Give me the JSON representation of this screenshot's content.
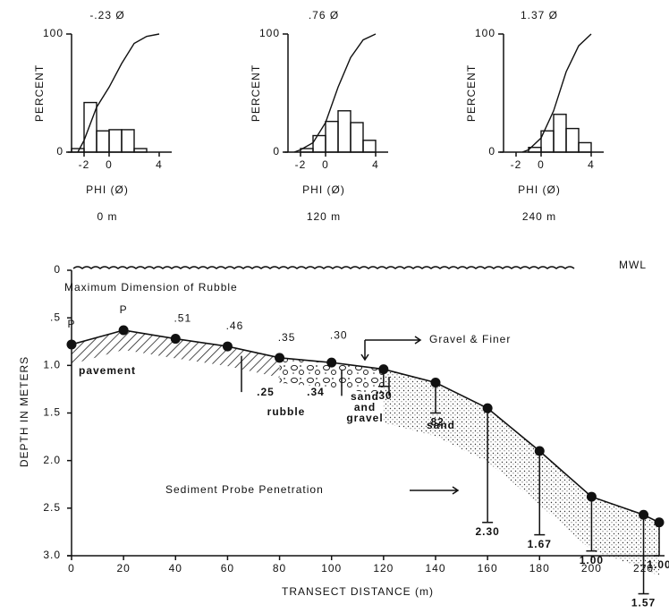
{
  "chart_data": [
    {
      "type": "histogram",
      "title": "-.23 Ø",
      "ylabel": "PERCENT",
      "xlabel": "PHI (Ø)",
      "caption": "0 m",
      "bins": [
        -3,
        -2,
        -1,
        0,
        1,
        2,
        3
      ],
      "counts": [
        3,
        42,
        18,
        19,
        19,
        3
      ],
      "cumulative": {
        "x": [
          -2.5,
          -2,
          -1,
          0,
          1,
          2,
          3,
          4
        ],
        "y": [
          0,
          10,
          38,
          55,
          75,
          92,
          98,
          100
        ]
      },
      "xlim": [
        -3,
        5
      ],
      "ylim": [
        0,
        100
      ],
      "xticks": [
        -2,
        0,
        4
      ],
      "yticks": [
        0,
        100
      ],
      "color": "#111111"
    },
    {
      "type": "histogram",
      "title": ".76 Ø",
      "ylabel": "PERCENT",
      "xlabel": "PHI (Ø)",
      "caption": "120 m",
      "bins": [
        -2,
        -1,
        0,
        1,
        2,
        3,
        4
      ],
      "counts": [
        3,
        14,
        26,
        35,
        25,
        10
      ],
      "cumulative": {
        "x": [
          -2.5,
          -2,
          -1,
          0,
          1,
          2,
          3,
          4
        ],
        "y": [
          0,
          2,
          8,
          25,
          55,
          80,
          95,
          100
        ]
      },
      "xlim": [
        -3,
        5
      ],
      "ylim": [
        0,
        100
      ],
      "xticks": [
        -2,
        0,
        4
      ],
      "yticks": [
        0,
        100
      ],
      "color": "#111111"
    },
    {
      "type": "histogram",
      "title": "1.37 Ø",
      "ylabel": "PERCENT",
      "xlabel": "PHI (Ø)",
      "caption": "240 m",
      "bins": [
        -1,
        0,
        1,
        2,
        3,
        4
      ],
      "counts": [
        4,
        18,
        32,
        20,
        8
      ],
      "cumulative": {
        "x": [
          -1.5,
          -1,
          0,
          1,
          2,
          3,
          4
        ],
        "y": [
          0,
          2,
          12,
          35,
          68,
          90,
          100
        ]
      },
      "xlim": [
        -3,
        5
      ],
      "ylim": [
        0,
        100
      ],
      "xticks": [
        -2,
        0,
        4
      ],
      "yticks": [
        0,
        100
      ],
      "color": "#111111"
    },
    {
      "type": "profile",
      "xlabel": "TRANSECT DISTANCE (m)",
      "ylabel": "DEPTH IN METERS",
      "x": [
        0,
        20,
        40,
        60,
        80,
        100,
        120,
        140,
        160,
        180,
        200,
        220,
        226
      ],
      "values": [
        0.78,
        0.63,
        0.72,
        0.8,
        0.92,
        0.97,
        1.04,
        1.18,
        1.45,
        1.9,
        2.38,
        2.57,
        2.65
      ],
      "top_labels": [
        "P",
        "P",
        ".51",
        ".46",
        ".35",
        ".30",
        null,
        null,
        null,
        null,
        null,
        null,
        null
      ],
      "rubble_labels": [
        ".25",
        ".34"
      ],
      "probes": [
        {
          "x": 120,
          "depth": 1.22,
          "label": ".30"
        },
        {
          "x": 140,
          "depth": 1.5,
          "label": ".82"
        },
        {
          "x": 160,
          "depth": 2.65,
          "label": "2.30"
        },
        {
          "x": 180,
          "depth": 2.78,
          "label": "1.67"
        },
        {
          "x": 200,
          "depth": 2.95,
          "label": "1.00"
        },
        {
          "x": 220,
          "depth": 3.4,
          "label": "1.57"
        },
        {
          "x": 226,
          "depth": 3.0,
          "label": "1.00"
        }
      ],
      "annotations": [
        "MWL",
        "Maximum Dimension of Rubble",
        "Gravel & Finer",
        "Sediment Probe Penetration",
        "pavement",
        "rubble",
        "sand",
        "and",
        "gravel",
        "sand"
      ],
      "xlim": [
        0,
        226
      ],
      "ylim": [
        0,
        3
      ],
      "xticks": [
        0,
        20,
        40,
        60,
        80,
        100,
        120,
        140,
        160,
        180,
        200,
        220
      ],
      "yticks": [
        0,
        {
          "value": 0.5,
          "label": ".5"
        },
        {
          "value": 1,
          "label": "1.0"
        },
        {
          "value": 1.5,
          "label": "1.5"
        },
        {
          "value": 2,
          "label": "2.0"
        },
        {
          "value": 2.5,
          "label": "2.5"
        },
        {
          "value": 3,
          "label": "3.0"
        }
      ],
      "color": "#111111"
    }
  ]
}
